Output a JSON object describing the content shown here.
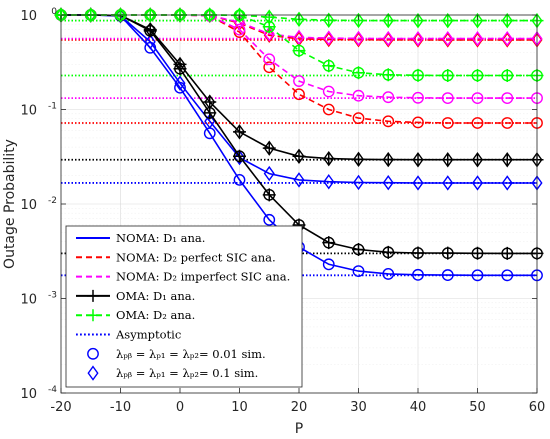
{
  "colors": {
    "noma_d1": "#0000ff",
    "noma_d2_perfect": "#ff0000",
    "noma_d2_imperfect": "#ff00ff",
    "oma_d1": "#000000",
    "oma_d2": "#00ff00",
    "grid": "#d9d9d9"
  },
  "chart_data": {
    "type": "line",
    "xlabel": "P",
    "ylabel": "Outage Probability",
    "xlim": [
      -20,
      60
    ],
    "ylim": [
      0.0001,
      1
    ],
    "yscale": "log",
    "xticks": [
      -20,
      -10,
      0,
      10,
      20,
      30,
      40,
      50,
      60
    ],
    "xtick_labels": [
      "-20",
      "-10",
      "0",
      "10",
      "20",
      "30",
      "40",
      "50",
      "60"
    ],
    "yticks": [
      0.0001,
      0.001,
      0.01,
      0.1,
      1
    ],
    "ytick_labels": [
      {
        "base": "10",
        "exp": "-4"
      },
      {
        "base": "10",
        "exp": "-3"
      },
      {
        "base": "10",
        "exp": "-2"
      },
      {
        "base": "10",
        "exp": "-1"
      },
      {
        "base": "10",
        "exp": "0"
      }
    ],
    "grid": true,
    "legend_position": "bottom-left",
    "legend": [
      {
        "label": "NOMA: D₁ ana.",
        "style": "solid",
        "color_key": "noma_d1",
        "marker": "none"
      },
      {
        "label": "NOMA: D₂ perfect SIC ana.",
        "style": "dashed",
        "color_key": "noma_d2_perfect",
        "marker": "none"
      },
      {
        "label": "NOMA: D₂ imperfect SIC ana.",
        "style": "dashed",
        "color_key": "noma_d2_imperfect",
        "marker": "none"
      },
      {
        "label": "OMA: D₁ ana.",
        "style": "solid",
        "color_key": "oma_d1",
        "marker": "plus"
      },
      {
        "label": "OMA: D₂ ana.",
        "style": "dashed",
        "color_key": "oma_d2",
        "marker": "plus"
      },
      {
        "label": "Asymptotic",
        "style": "dotted",
        "color_key": "noma_d1",
        "marker": "none"
      },
      {
        "label": "λₚᵦ = λₚ₁ = λₚ₂= 0.01 sim.",
        "style": "none",
        "color_key": "noma_d1",
        "marker": "circle"
      },
      {
        "label": "λₚᵦ = λₚ₁ = λₚ₂= 0.1 sim.",
        "style": "none",
        "color_key": "noma_d1",
        "marker": "diamond"
      }
    ],
    "x": [
      -20,
      -15,
      -10,
      -5,
      0,
      5,
      10,
      15,
      20,
      25,
      30,
      35,
      40,
      45,
      50,
      55,
      60
    ],
    "series": [
      {
        "key": "noma_d1_001",
        "color_key": "noma_d1",
        "style": "solid",
        "marker": "circle",
        "values": [
          1,
          1,
          0.98,
          0.45,
          0.17,
          0.056,
          0.018,
          0.0068,
          0.0035,
          0.0023,
          0.00195,
          0.00182,
          0.00178,
          0.00177,
          0.00176,
          0.00176,
          0.00176
        ]
      },
      {
        "key": "noma_d1_01",
        "color_key": "noma_d1",
        "style": "solid",
        "marker": "diamond",
        "values": [
          1,
          1,
          0.98,
          0.52,
          0.19,
          0.075,
          0.031,
          0.021,
          0.018,
          0.0172,
          0.0169,
          0.0168,
          0.0167,
          0.0167,
          0.0167,
          0.0167,
          0.0167
        ]
      },
      {
        "key": "oma_d1_001",
        "color_key": "oma_d1",
        "style": "solid",
        "marker": "circle-plus",
        "values": [
          1,
          1,
          0.99,
          0.68,
          0.27,
          0.092,
          0.032,
          0.0125,
          0.006,
          0.0039,
          0.0033,
          0.00308,
          0.00303,
          0.00302,
          0.00301,
          0.003,
          0.003
        ]
      },
      {
        "key": "oma_d1_01",
        "color_key": "oma_d1",
        "style": "solid",
        "marker": "diamond-plus",
        "values": [
          1,
          1,
          0.99,
          0.7,
          0.3,
          0.12,
          0.058,
          0.039,
          0.032,
          0.0302,
          0.0297,
          0.0295,
          0.0294,
          0.0294,
          0.0294,
          0.0294,
          0.0294
        ]
      },
      {
        "key": "noma_d2_perfect_001",
        "color_key": "noma_d2_perfect",
        "style": "dashed",
        "marker": "circle",
        "values": [
          1,
          1,
          1,
          1,
          1,
          0.98,
          0.66,
          0.28,
          0.145,
          0.1,
          0.081,
          0.075,
          0.073,
          0.072,
          0.072,
          0.072,
          0.072
        ]
      },
      {
        "key": "noma_d2_perfect_01",
        "color_key": "noma_d2_perfect",
        "style": "dashed",
        "marker": "diamond",
        "values": [
          1,
          1,
          1,
          1,
          1,
          0.99,
          0.82,
          0.61,
          0.56,
          0.55,
          0.548,
          0.546,
          0.545,
          0.545,
          0.545,
          0.545,
          0.545
        ]
      },
      {
        "key": "noma_d2_imperfect_001",
        "color_key": "noma_d2_imperfect",
        "style": "dashed",
        "marker": "circle",
        "values": [
          1,
          1,
          1,
          1,
          1,
          0.98,
          0.7,
          0.34,
          0.2,
          0.155,
          0.14,
          0.135,
          0.133,
          0.132,
          0.132,
          0.132,
          0.132
        ]
      },
      {
        "key": "noma_d2_imperfect_01",
        "color_key": "noma_d2_imperfect",
        "style": "dashed",
        "marker": "diamond",
        "values": [
          1,
          1,
          1,
          1,
          1,
          0.99,
          0.84,
          0.63,
          0.58,
          0.57,
          0.565,
          0.563,
          0.562,
          0.562,
          0.562,
          0.562,
          0.562
        ]
      },
      {
        "key": "oma_d2_001",
        "color_key": "oma_d2",
        "style": "dashed",
        "marker": "circle-plus",
        "values": [
          1,
          1,
          1,
          1,
          1,
          1,
          0.99,
          0.75,
          0.42,
          0.29,
          0.245,
          0.233,
          0.23,
          0.229,
          0.229,
          0.229,
          0.229
        ]
      },
      {
        "key": "oma_d2_01",
        "color_key": "oma_d2",
        "style": "dashed",
        "marker": "diamond-plus",
        "values": [
          1,
          1,
          1,
          1,
          1,
          1,
          0.995,
          0.95,
          0.9,
          0.88,
          0.875,
          0.873,
          0.872,
          0.872,
          0.872,
          0.872,
          0.872
        ]
      }
    ],
    "asymptotes": [
      {
        "color_key": "noma_d1",
        "value": 0.00176
      },
      {
        "color_key": "noma_d1",
        "value": 0.0167
      },
      {
        "color_key": "noma_d2_perfect",
        "value": 0.072
      },
      {
        "color_key": "noma_d2_perfect",
        "value": 0.545
      },
      {
        "color_key": "noma_d2_imperfect",
        "value": 0.132
      },
      {
        "color_key": "noma_d2_imperfect",
        "value": 0.562
      },
      {
        "color_key": "oma_d1",
        "value": 0.003
      },
      {
        "color_key": "oma_d1",
        "value": 0.0294
      },
      {
        "color_key": "oma_d2",
        "value": 0.229
      },
      {
        "color_key": "oma_d2",
        "value": 0.872
      }
    ]
  }
}
